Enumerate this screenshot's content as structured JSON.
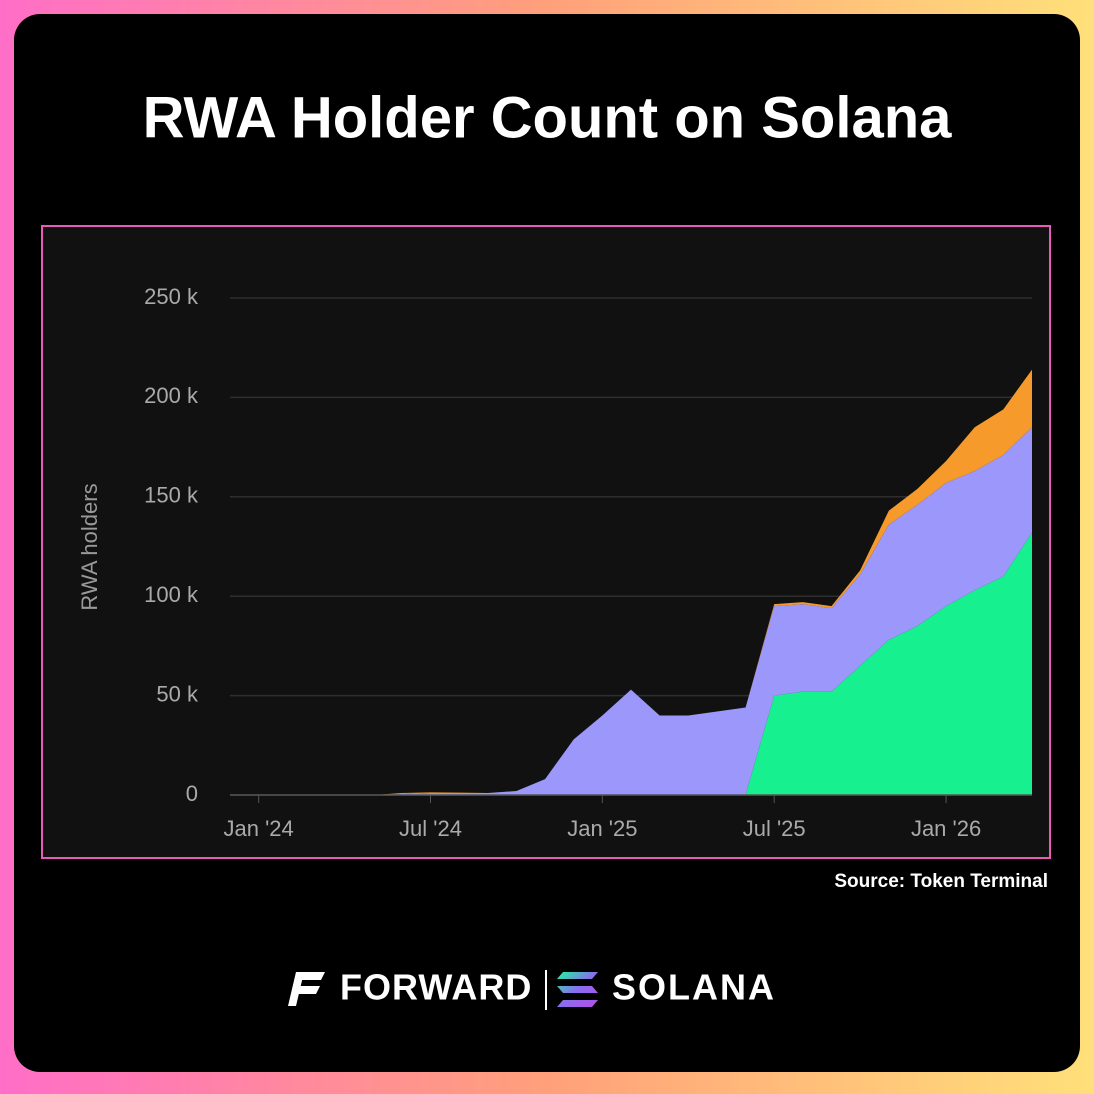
{
  "chart_data": {
    "type": "stacked-area",
    "title": "RWA Holder Count on Solana",
    "y_label": "RWA holders",
    "x": [
      "2024-05",
      "2024-06",
      "2024-07",
      "2024-08",
      "2024-09",
      "2024-10",
      "2024-11",
      "2024-12",
      "2025-01",
      "2025-02",
      "2025-03",
      "2025-04",
      "2025-05",
      "2025-06",
      "2025-07",
      "2025-08",
      "2025-09",
      "2025-10",
      "2025-11",
      "2025-12",
      "2026-01",
      "2026-02",
      "2026-03",
      "2026-04"
    ],
    "series": [
      {
        "color": "#16f08f",
        "values": [
          0,
          0,
          0,
          0,
          0,
          0,
          0,
          0,
          0,
          0,
          0,
          0,
          0,
          0,
          50000,
          52000,
          52000,
          65000,
          78000,
          85000,
          95000,
          103000,
          110000,
          132000
        ]
      },
      {
        "color": "#9b97fb",
        "values": [
          0,
          500,
          1000,
          1000,
          1000,
          2000,
          8000,
          28000,
          40000,
          53000,
          40000,
          40000,
          42000,
          44000,
          45000,
          44000,
          42000,
          46000,
          58000,
          61000,
          62000,
          60000,
          61000,
          53000
        ]
      },
      {
        "color": "#f59a2b",
        "values": [
          0,
          500,
          300,
          200,
          0,
          0,
          0,
          0,
          0,
          0,
          0,
          0,
          0,
          0,
          1000,
          1000,
          1000,
          2000,
          7000,
          8000,
          11000,
          22000,
          23000,
          29000
        ]
      }
    ],
    "xlim": [
      "2023-12",
      "2026-04"
    ],
    "xticks": [
      {
        "value": "2024-01",
        "label": "Jan '24"
      },
      {
        "value": "2024-07",
        "label": "Jul '24"
      },
      {
        "value": "2025-01",
        "label": "Jan '25"
      },
      {
        "value": "2025-07",
        "label": "Jul '25"
      },
      {
        "value": "2026-01",
        "label": "Jan '26"
      }
    ],
    "ylim": [
      0,
      250000
    ],
    "yticks": [
      {
        "value": 0,
        "label": "0"
      },
      {
        "value": 50000,
        "label": "50 k"
      },
      {
        "value": 100000,
        "label": "100 k"
      },
      {
        "value": 150000,
        "label": "150 k"
      },
      {
        "value": 200000,
        "label": "200 k"
      },
      {
        "value": 250000,
        "label": "250 k"
      }
    ],
    "grid": true
  },
  "source": "Source: Token Terminal",
  "footer": {
    "brands": [
      "FORWARD",
      "SOLANA"
    ]
  }
}
